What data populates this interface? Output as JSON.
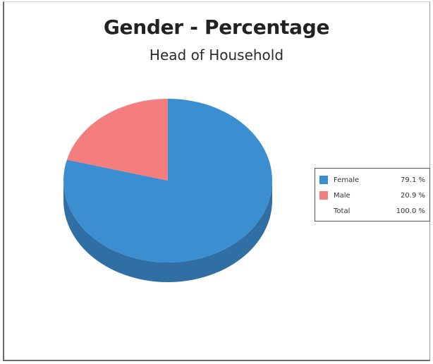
{
  "chart_data": {
    "type": "pie",
    "title": "Gender - Percentage",
    "subtitle": "Head of Household",
    "slices": [
      {
        "label": "Female",
        "value": 79.1,
        "display": "79.1 %",
        "color": "#3b8fd0",
        "side_color": "#2f6fa3"
      },
      {
        "label": "Male",
        "value": 20.9,
        "display": "20.9 %",
        "color": "#f47d7d",
        "side_color": "#c25f5f"
      }
    ],
    "total": {
      "label": "Total",
      "display": "100.0 %"
    },
    "legend_position": "right"
  }
}
